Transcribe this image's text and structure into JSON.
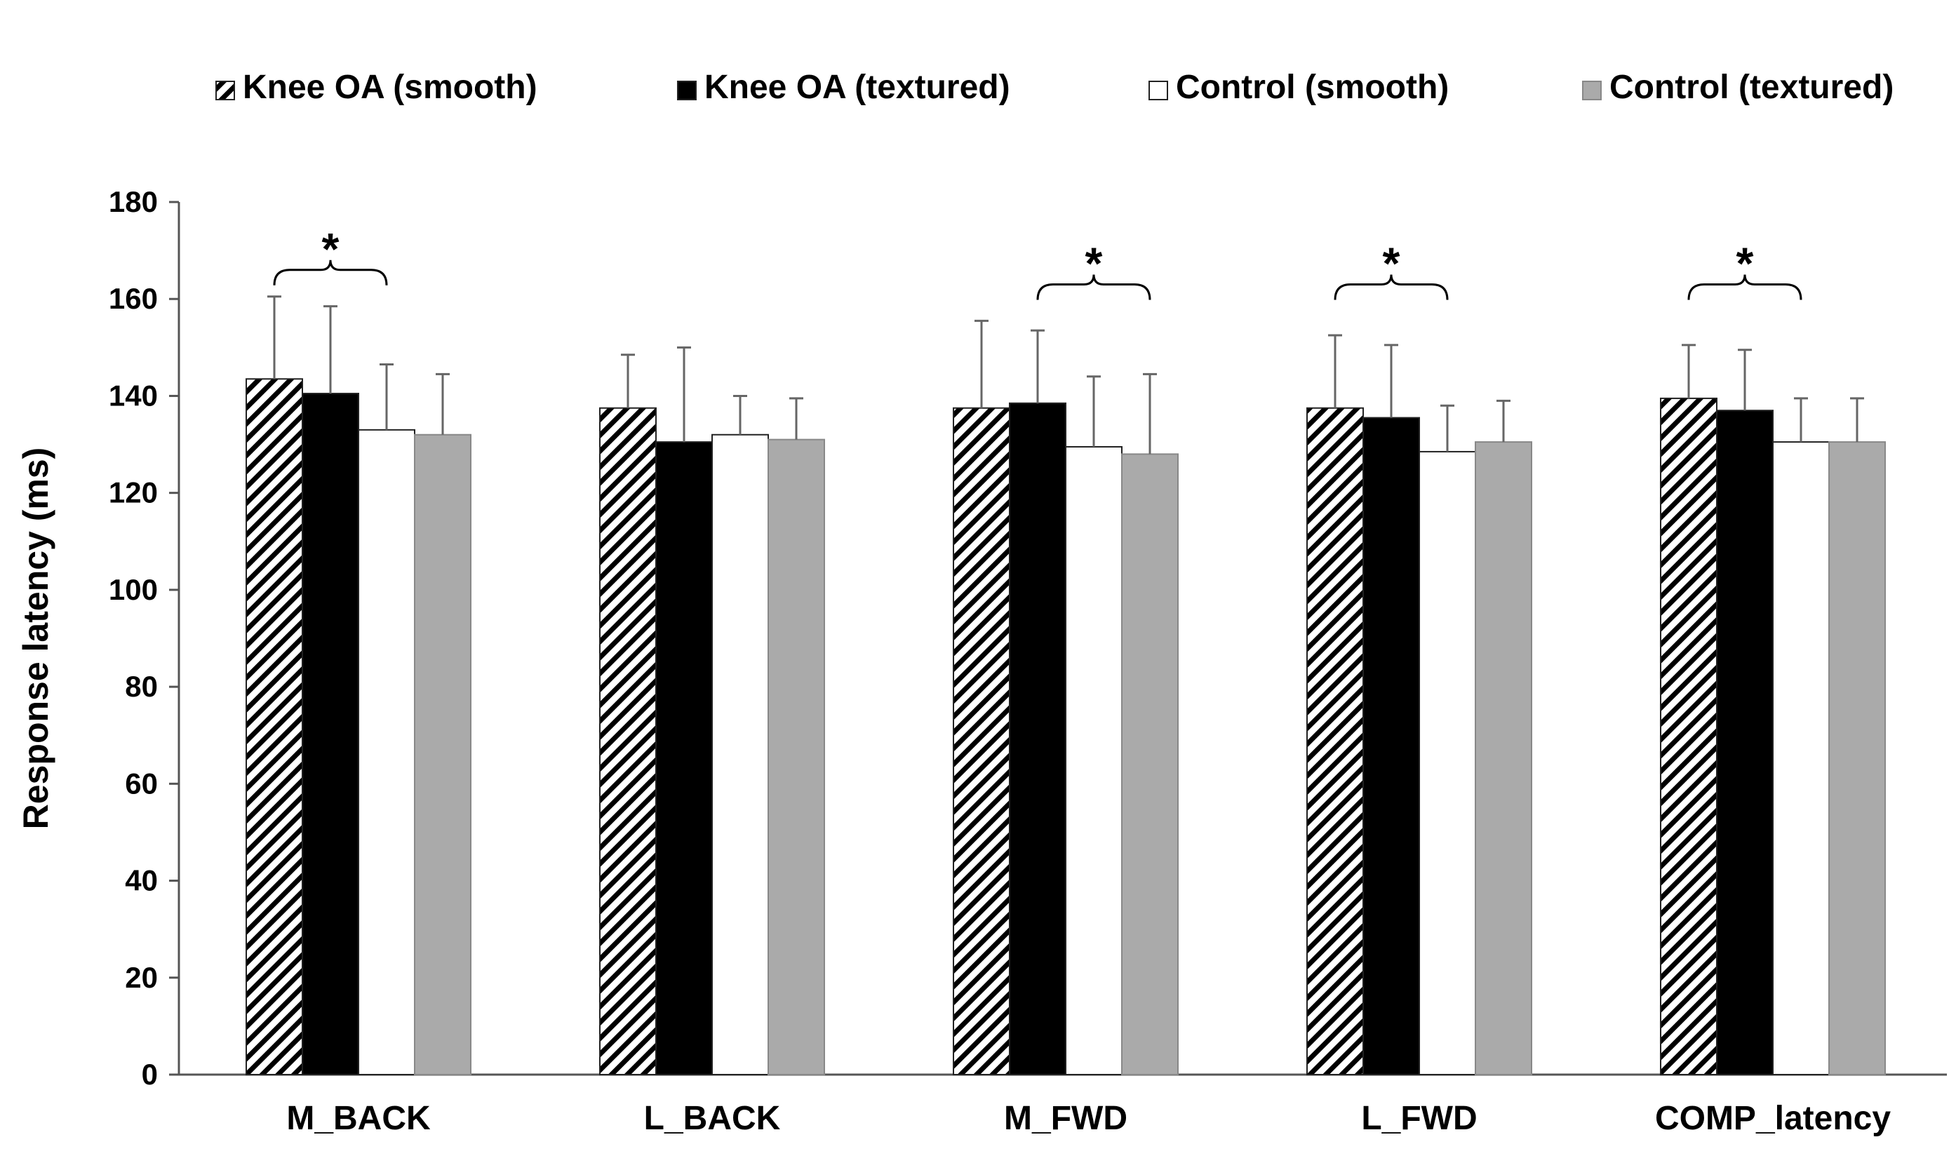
{
  "chart_data": {
    "type": "bar",
    "title": "",
    "xlabel": "",
    "ylabel": "Response latency (ms)",
    "ylim": [
      0,
      180
    ],
    "yticks": [
      0,
      20,
      40,
      60,
      80,
      100,
      120,
      140,
      160,
      180
    ],
    "grid": false,
    "legend_position": "top",
    "categories": [
      "M_BACK",
      "L_BACK",
      "M_FWD",
      "L_FWD",
      "COMP_latency"
    ],
    "series": [
      {
        "name": "Knee OA (smooth)",
        "fill": "hatched",
        "color": "#000000",
        "values": [
          143.5,
          137.5,
          137.5,
          137.5,
          139.5
        ],
        "errors": [
          17,
          11,
          18,
          15,
          11
        ]
      },
      {
        "name": "Knee OA (textured)",
        "fill": "solid",
        "color": "#000000",
        "values": [
          140.5,
          130.5,
          138.5,
          135.5,
          137
        ],
        "errors": [
          18,
          19.5,
          15,
          15,
          12.5
        ]
      },
      {
        "name": "Control (smooth)",
        "fill": "solid",
        "color": "#ffffff",
        "values": [
          133,
          132,
          129.5,
          128.5,
          130.5
        ],
        "errors": [
          13.5,
          8,
          14.5,
          9.5,
          9
        ]
      },
      {
        "name": "Control (textured)",
        "fill": "solid",
        "color": "#aaaaaa",
        "values": [
          132,
          131,
          128,
          130.5,
          130.5
        ],
        "errors": [
          12.5,
          8.5,
          16.5,
          8.5,
          9
        ]
      }
    ],
    "annotations": [
      {
        "text": "*",
        "category": "M_BACK",
        "bracket_from_series": 0,
        "bracket_to_series": 2,
        "value": 166
      },
      {
        "text": "*",
        "category": "M_FWD",
        "bracket_from_series": 1,
        "bracket_to_series": 3,
        "value": 163
      },
      {
        "text": "*",
        "category": "L_FWD",
        "bracket_from_series": 0,
        "bracket_to_series": 2,
        "value": 163
      },
      {
        "text": "*",
        "category": "COMP_latency",
        "bracket_from_series": 0,
        "bracket_to_series": 2,
        "value": 163
      }
    ]
  }
}
